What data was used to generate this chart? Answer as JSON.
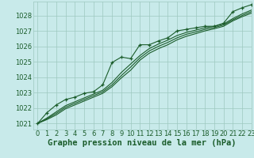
{
  "title": "Graphe pression niveau de la mer (hPa)",
  "bg_color": "#c8eaea",
  "grid_color": "#9ec8c0",
  "line_color": "#1a5c2a",
  "xlim": [
    -0.5,
    23
  ],
  "ylim": [
    1020.6,
    1028.9
  ],
  "yticks": [
    1021,
    1022,
    1023,
    1024,
    1025,
    1026,
    1027,
    1028
  ],
  "xticks": [
    0,
    1,
    2,
    3,
    4,
    5,
    6,
    7,
    8,
    9,
    10,
    11,
    12,
    13,
    14,
    15,
    16,
    17,
    18,
    19,
    20,
    21,
    22,
    23
  ],
  "series_smooth": [
    [
      1021.0,
      1021.35,
      1021.75,
      1022.15,
      1022.4,
      1022.65,
      1022.9,
      1023.15,
      1023.65,
      1024.3,
      1024.85,
      1025.4,
      1025.85,
      1026.15,
      1026.4,
      1026.7,
      1026.9,
      1027.05,
      1027.2,
      1027.3,
      1027.45,
      1027.8,
      1028.1,
      1028.35
    ],
    [
      1021.0,
      1021.3,
      1021.65,
      1022.05,
      1022.3,
      1022.55,
      1022.8,
      1023.05,
      1023.5,
      1024.1,
      1024.65,
      1025.25,
      1025.7,
      1026.0,
      1026.25,
      1026.55,
      1026.78,
      1026.93,
      1027.1,
      1027.22,
      1027.38,
      1027.72,
      1028.0,
      1028.25
    ],
    [
      1021.0,
      1021.25,
      1021.55,
      1021.95,
      1022.2,
      1022.45,
      1022.7,
      1022.95,
      1023.38,
      1023.95,
      1024.45,
      1025.1,
      1025.55,
      1025.85,
      1026.1,
      1026.42,
      1026.65,
      1026.82,
      1027.0,
      1027.14,
      1027.3,
      1027.65,
      1027.92,
      1028.15
    ]
  ],
  "series_marker": [
    1021.0,
    1021.7,
    1022.2,
    1022.55,
    1022.7,
    1022.95,
    1023.05,
    1023.5,
    1024.95,
    1025.3,
    1025.2,
    1026.1,
    1026.1,
    1026.35,
    1026.55,
    1027.0,
    1027.1,
    1027.2,
    1027.3,
    1027.3,
    1027.5,
    1028.25,
    1028.5,
    1028.7
  ],
  "title_fontsize": 7.5,
  "tick_fontsize": 6
}
